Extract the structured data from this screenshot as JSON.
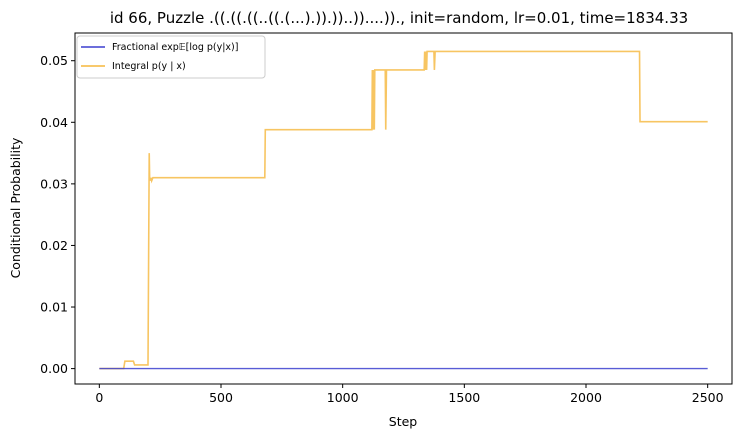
{
  "chart_data": {
    "type": "line",
    "title": "id 66, Puzzle .((.((.((..((.(...).)).))..))....))., init=random, lr=0.01, time=1834.33",
    "xlabel": "Step",
    "ylabel": "Conditional Probability",
    "xlim": [
      -100,
      2600
    ],
    "ylim": [
      -0.0025,
      0.0545
    ],
    "xticks": [
      0,
      500,
      1000,
      1500,
      2000,
      2500
    ],
    "yticks": [
      0.0,
      0.01,
      0.02,
      0.03,
      0.04,
      0.05
    ],
    "xtick_labels": [
      "0",
      "500",
      "1000",
      "1500",
      "2000",
      "2500"
    ],
    "ytick_labels": [
      "0.00",
      "0.01",
      "0.02",
      "0.03",
      "0.04",
      "0.05"
    ],
    "legend": {
      "placement": "top-left",
      "entries": [
        "Fractional exp𝔼[log p(y|x)]",
        "Integral p(y | x)"
      ]
    },
    "grid": false,
    "series": [
      {
        "name": "Fractional exp𝔼[log p(y|x)]",
        "color": "#3b3fcf",
        "x": [
          0,
          500,
          1000,
          1500,
          2000,
          2500
        ],
        "y": [
          0.0,
          0.0,
          0.0,
          0.0,
          0.0,
          0.0
        ]
      },
      {
        "name": "Integral p(y | x)",
        "color": "#f5b73b",
        "x": [
          0,
          100,
          105,
          140,
          145,
          200,
          205,
          207,
          208,
          210,
          212,
          215,
          220,
          680,
          682,
          1120,
          1122,
          1125,
          1127,
          1130,
          1132,
          1175,
          1177,
          1180,
          1182,
          1335,
          1337,
          1340,
          1342,
          1345,
          1347,
          1375,
          1377,
          1380,
          1382,
          2220,
          2222,
          2500
        ],
        "y": [
          0.0,
          0.0,
          0.0012,
          0.0012,
          0.0006,
          0.0006,
          0.035,
          0.0305,
          0.031,
          0.0305,
          0.031,
          0.0305,
          0.031,
          0.031,
          0.0388,
          0.0388,
          0.0485,
          0.0388,
          0.0485,
          0.0388,
          0.0485,
          0.0485,
          0.0388,
          0.0485,
          0.0485,
          0.0485,
          0.0515,
          0.0485,
          0.0515,
          0.0485,
          0.0515,
          0.0515,
          0.0485,
          0.0515,
          0.0515,
          0.0515,
          0.0401,
          0.0401
        ]
      }
    ]
  }
}
